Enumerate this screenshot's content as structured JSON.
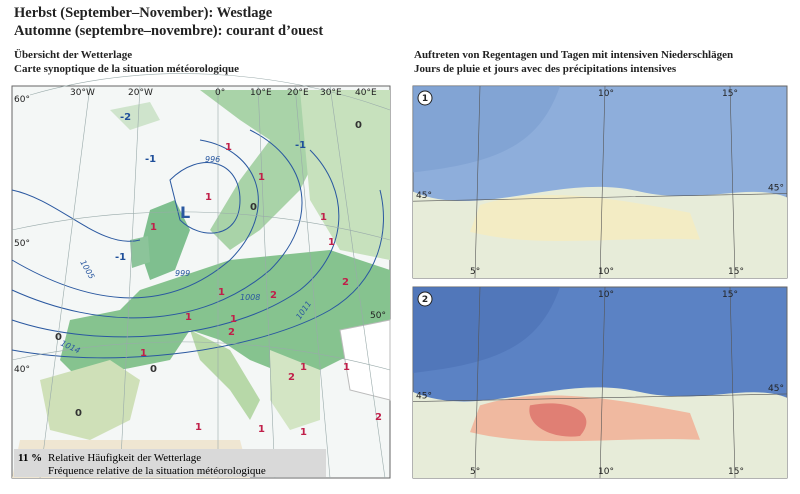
{
  "header": {
    "title_de": "Herbst (September–November): Westlage",
    "title_fr": "Automne (septembre–novembre): courant d’ouest"
  },
  "left_panel": {
    "title_de": "Übersicht der Wetterlage",
    "title_fr": "Carte synoptique de la situation météorologique",
    "lon_labels": [
      "30°W",
      "20°W",
      "0°",
      "10°E",
      "20°E",
      "30°E",
      "40°E"
    ],
    "lat_labels": [
      "60°",
      "50°",
      "40°",
      "50°"
    ],
    "isobars": [
      "996",
      "999",
      "1005",
      "1008",
      "1011",
      "1014"
    ],
    "low": "L",
    "region_values": [
      "-2",
      "-1",
      "1",
      "-1",
      "1",
      "1",
      "0",
      "1",
      "1",
      "2",
      "2",
      "1",
      "2",
      "1",
      "1",
      "0",
      "0",
      "0",
      "1",
      "1",
      "2",
      "1",
      "1",
      "1",
      "0",
      "-1",
      "1",
      "1",
      "2"
    ],
    "caption": {
      "percent": "11 %",
      "de": "Relative Häufigkeit der Wetterlage",
      "fr": "Fréquence relative de la situation météorologique"
    }
  },
  "right_panel": {
    "title_de": "Auftreten von Regentagen und Tagen mit intensiven Niederschlägen",
    "title_fr": "Jours de pluie et jours avec des précipitations intensives",
    "maps": [
      {
        "number": "1",
        "top_labels": [
          "10°",
          "15°"
        ],
        "side_labels": [
          "45°",
          "45°"
        ],
        "bottom_labels": [
          "5°",
          "10°",
          "15°"
        ]
      },
      {
        "number": "2",
        "top_labels": [
          "10°",
          "15°"
        ],
        "side_labels": [
          "45°",
          "45°"
        ],
        "bottom_labels": [
          "5°",
          "10°",
          "15°"
        ]
      }
    ]
  }
}
